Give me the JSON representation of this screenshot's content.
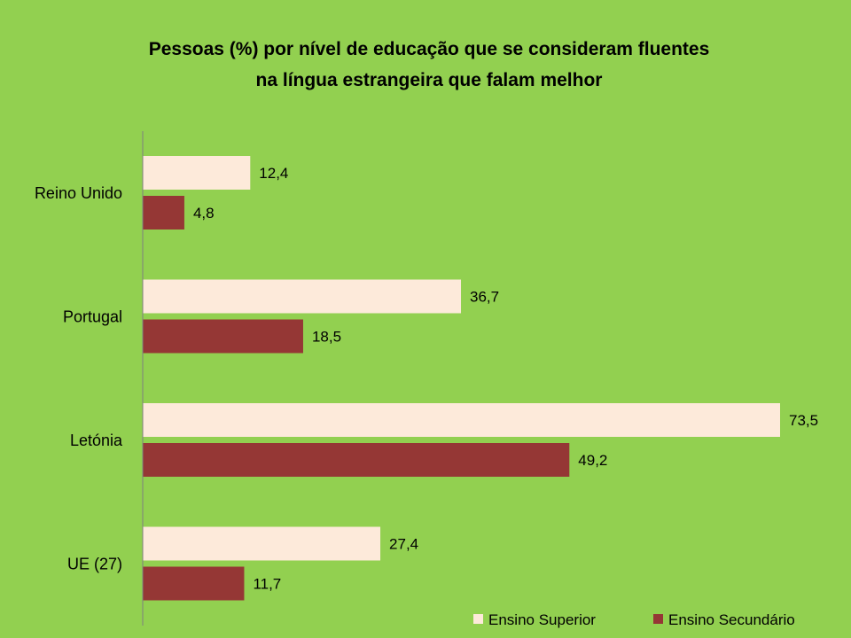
{
  "chart_data": {
    "type": "bar",
    "orientation": "horizontal",
    "title": [
      "Pessoas (%) por nível de educação que se consideram fluentes",
      "na língua estrangeira que falam melhor"
    ],
    "categories": [
      "Reino Unido",
      "Portugal",
      "Letónia",
      "UE (27)"
    ],
    "series": [
      {
        "name": "Ensino Superior",
        "color": "#fdeada",
        "values": [
          12.4,
          36.7,
          73.5,
          27.4
        ],
        "labels": [
          "12,4",
          "36,7",
          "73,5",
          "27,4"
        ]
      },
      {
        "name": "Ensino Secundário",
        "color": "#953735",
        "values": [
          4.8,
          18.5,
          49.2,
          11.7
        ],
        "labels": [
          "4,8",
          "18,5",
          "49,2",
          "11,7"
        ]
      }
    ],
    "xlim": [
      0,
      73.5
    ],
    "grid": false,
    "legend_position": "bottom-right",
    "background": "#92d050"
  }
}
